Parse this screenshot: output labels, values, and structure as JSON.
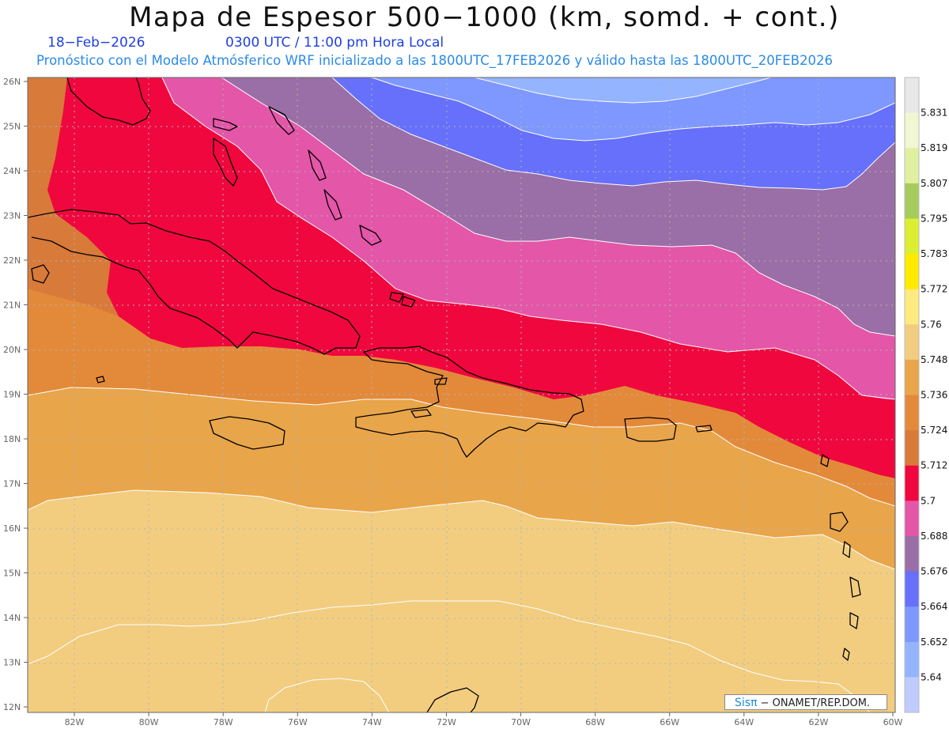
{
  "header": {
    "title": "Mapa de Espesor 500−1000 (km, somd. + cont.)",
    "date": "18−Feb−2026",
    "valid_time": "0300 UTC / 11:00 pm Hora Local",
    "model_info": "Pronóstico con el Modelo Atmósferico WRF inicializado a las 1800UTC_17FEB2026 y válido hasta las  1800UTC_20FEB2026"
  },
  "credit": {
    "brand": "Sisπ",
    "text": "− ONAMET/REP.DOM."
  },
  "axes": {
    "lat_labels": [
      "26N",
      "25N",
      "24N",
      "23N",
      "22N",
      "21N",
      "20N",
      "19N",
      "18N",
      "17N",
      "16N",
      "15N",
      "14N",
      "13N",
      "12N"
    ],
    "lon_labels": [
      "82W",
      "80W",
      "78W",
      "76W",
      "74W",
      "72W",
      "70W",
      "68W",
      "66W",
      "64W",
      "62W",
      "60W"
    ]
  },
  "colorbar": {
    "labels": [
      "5.831",
      "5.819",
      "5.807",
      "5.795",
      "5.783",
      "5.772",
      "5.76",
      "5.748",
      "5.736",
      "5.724",
      "5.712",
      "5.7",
      "5.688",
      "5.676",
      "5.664",
      "5.652",
      "5.64"
    ],
    "colors": [
      "#e8e8e8",
      "#f2f6d2",
      "#e0f0a0",
      "#a6cc5e",
      "#dcee30",
      "#ffea00",
      "#ffea80",
      "#f2cd80",
      "#e9a54a",
      "#e38a3a",
      "#d87a3a",
      "#f0073e",
      "#e456a8",
      "#9a6ea6",
      "#6670fa",
      "#7e98ff",
      "#94b4ff",
      "#c0ccff"
    ]
  },
  "map": {
    "extent": {
      "lon": [
        -83,
        -60
      ],
      "lat": [
        12,
        26
      ]
    },
    "colors": {
      "c5640": "#94b4ff",
      "c5652": "#7e98ff",
      "c5664": "#6670fa",
      "c5676": "#9a6ea6",
      "c5688": "#e456a8",
      "c5700": "#f0073e",
      "c5712": "#d87a3a",
      "c5724": "#e38a3a",
      "c5736": "#e9a54a",
      "c5748": "#f2cd80",
      "c5760": "#ffea80",
      "contour": "#ffffff",
      "coast": "#000000",
      "grid": "#b4b4b4"
    }
  }
}
